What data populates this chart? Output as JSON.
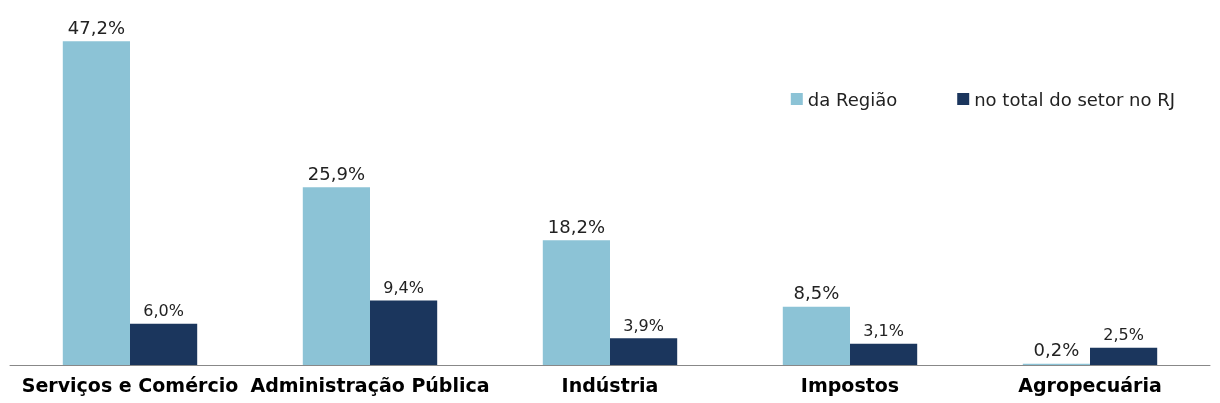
{
  "chart_data": {
    "type": "bar",
    "categories": [
      "Serviços e Comércio",
      "Administração Pública",
      "Indústria",
      "Impostos",
      "Agropecuária"
    ],
    "series": [
      {
        "name": "da Região",
        "color": "#8cc3d6",
        "values": [
          47.2,
          25.9,
          18.2,
          8.5,
          0.2
        ],
        "value_labels": [
          "47,2%",
          "25,9%",
          "18,2%",
          "8,5%",
          "0,2%"
        ]
      },
      {
        "name": "no total do setor no RJ",
        "color": "#1b365d",
        "values": [
          6.0,
          9.4,
          3.9,
          3.1,
          2.5
        ],
        "value_labels": [
          "6,0%",
          "9,4%",
          "3,9%",
          "3,1%",
          "2,5%"
        ]
      }
    ],
    "legend": "top right"
  }
}
